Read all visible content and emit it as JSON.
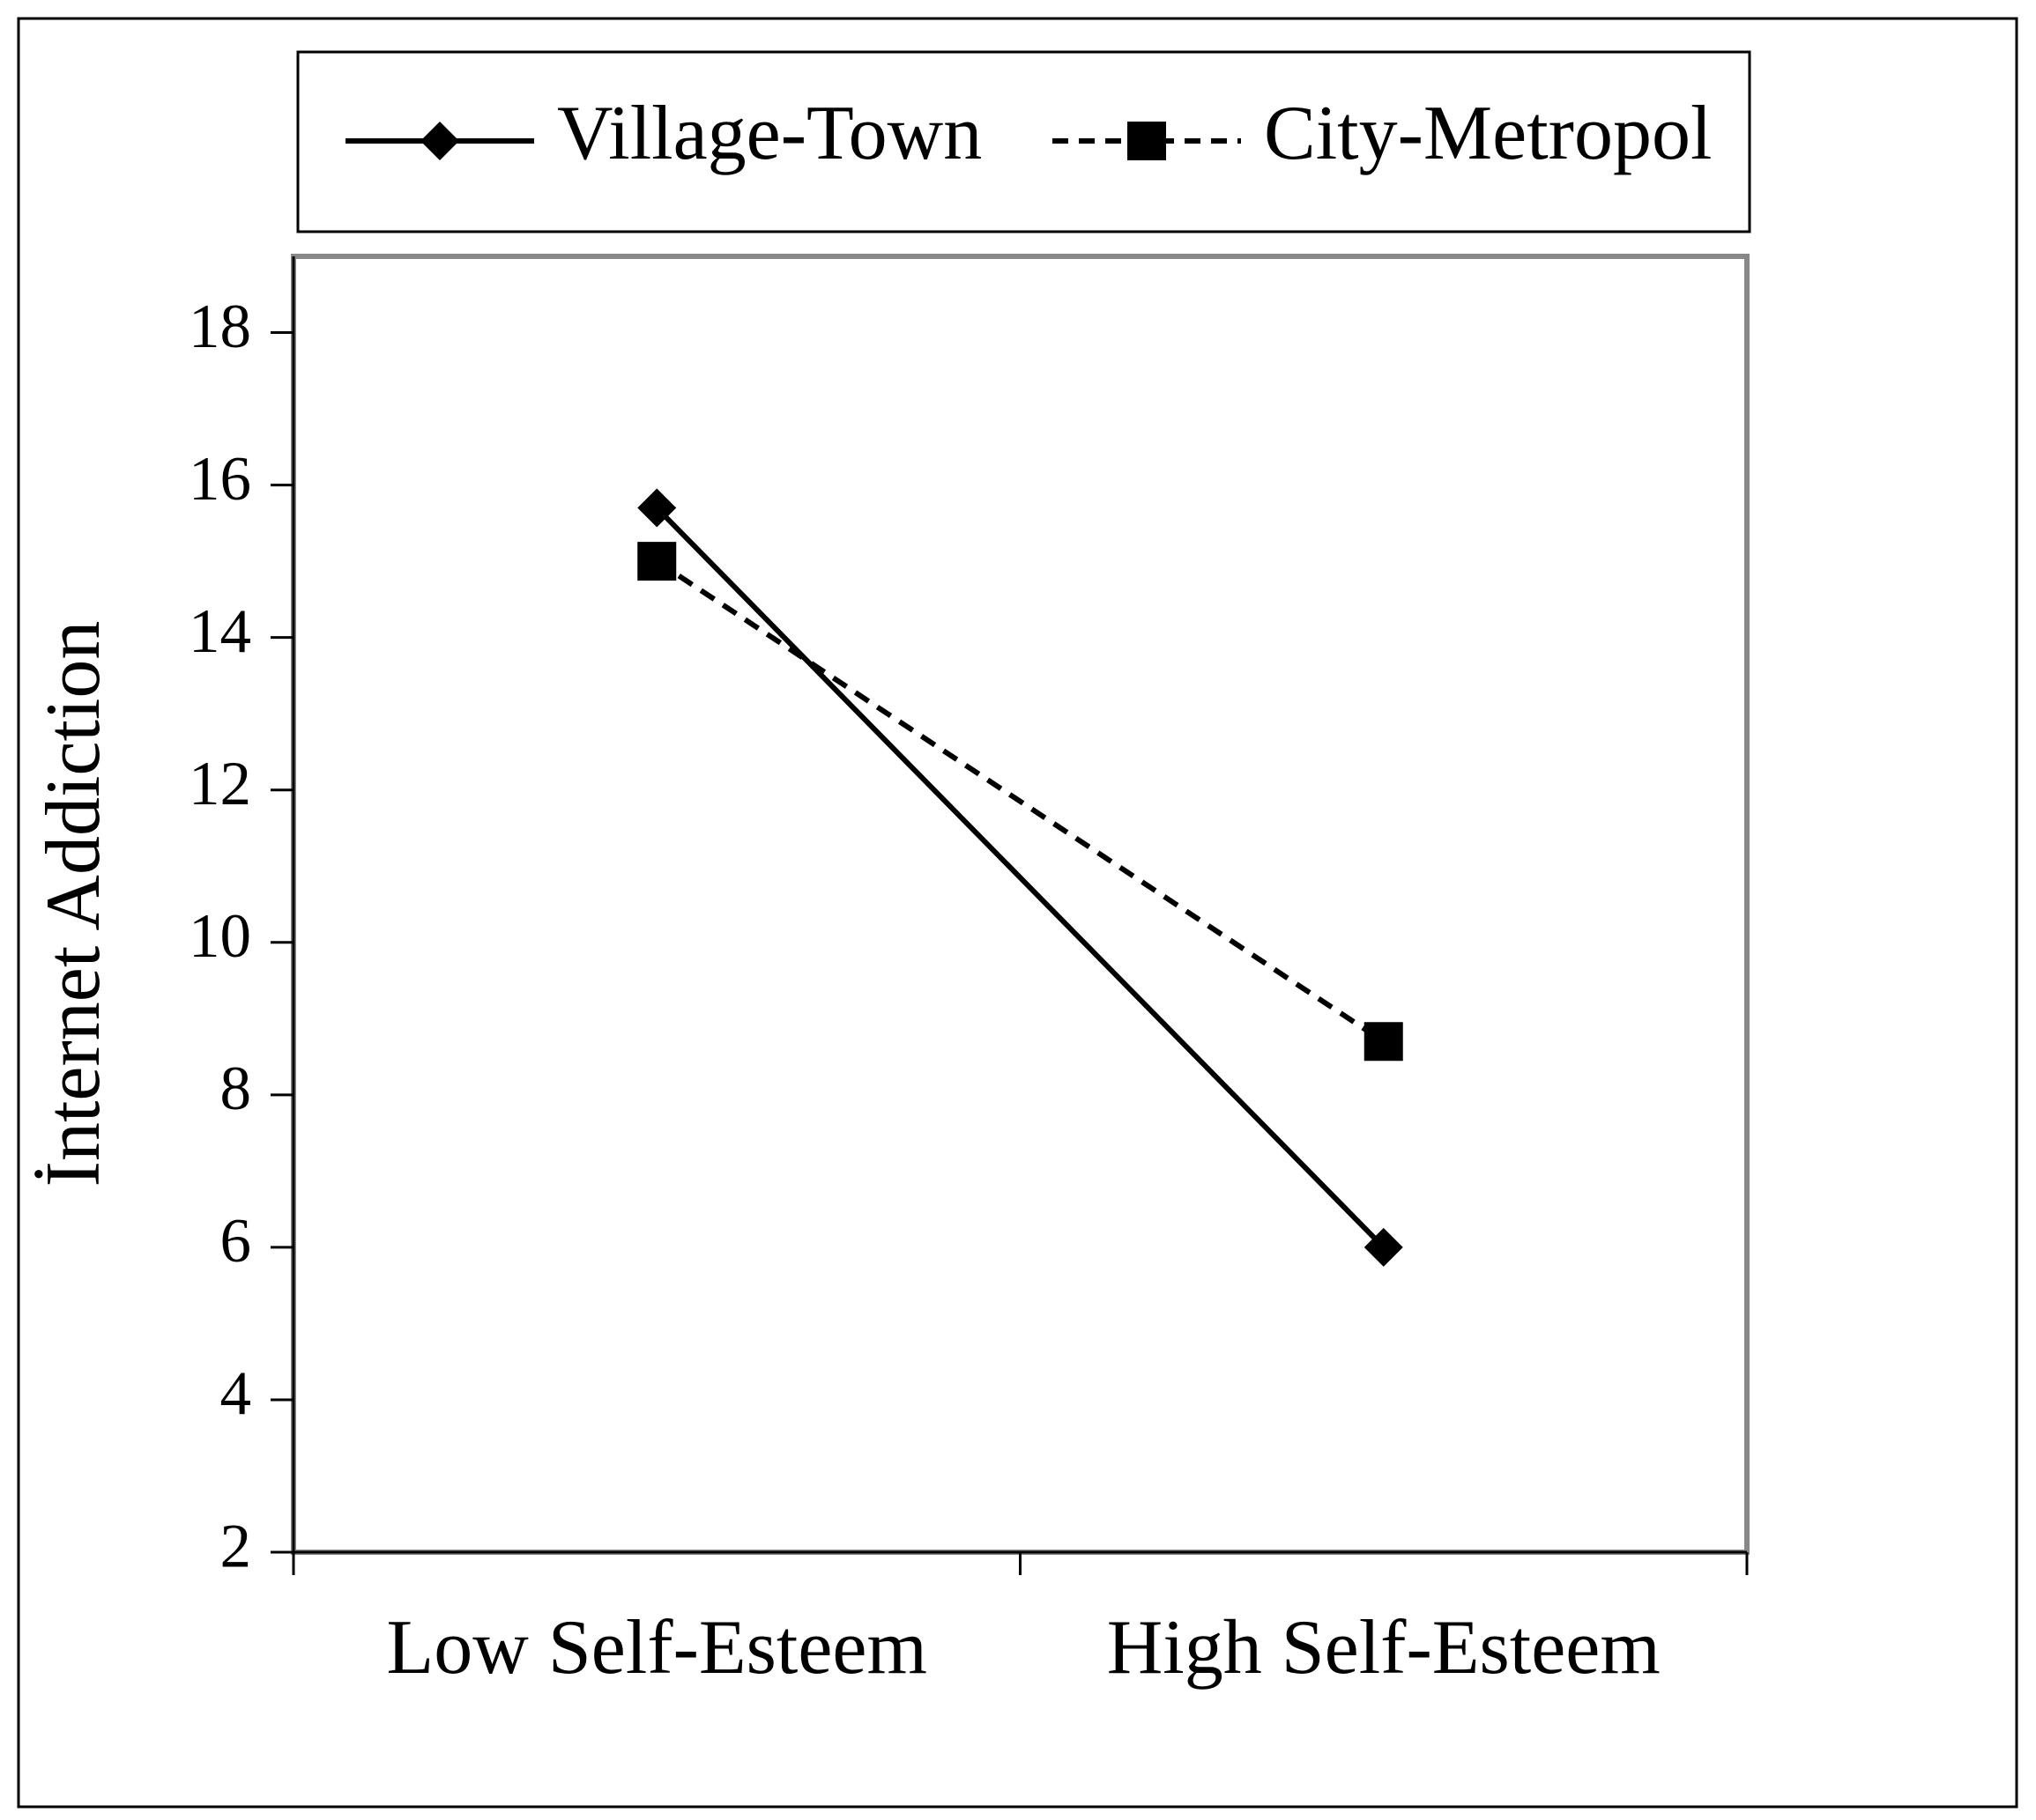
{
  "chart_data": {
    "type": "line",
    "y_label": "İnternet Addiction",
    "categories": [
      "Low Self-Esteem",
      "High Self-Esteem"
    ],
    "series": [
      {
        "name": "Village-Town",
        "color": "#000000",
        "line_style": "solid",
        "marker": "diamond",
        "values": [
          15.7,
          6.0
        ]
      },
      {
        "name": "City-Metropol",
        "color": "#000000",
        "line_style": "dashed",
        "marker": "square",
        "values": [
          15.0,
          8.7
        ]
      }
    ],
    "ylim": [
      2,
      19
    ],
    "yticks": [
      2,
      4,
      6,
      8,
      10,
      12,
      14,
      16,
      18
    ],
    "grid": false,
    "legend": "top"
  }
}
